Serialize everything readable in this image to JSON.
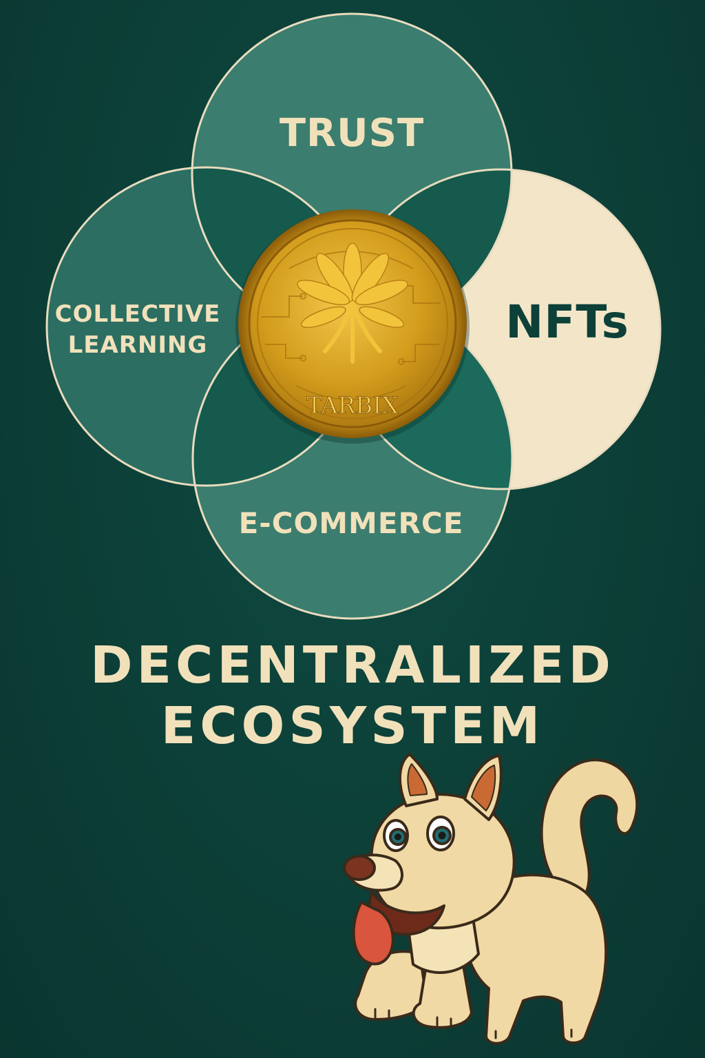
{
  "diagram": {
    "circles": [
      {
        "id": "trust",
        "label": "TRUST"
      },
      {
        "id": "collective-learning",
        "label_lines": [
          "COLLECTIVE",
          "LEARNING"
        ]
      },
      {
        "id": "nfts",
        "label": "NFTs"
      },
      {
        "id": "e-commerce",
        "label": "E-COMMERCE"
      }
    ],
    "coin": {
      "label": "TARBIX",
      "icon": "leaf-emblem-icon"
    }
  },
  "headline": {
    "line1": "DECENTRALIZED",
    "line2": "ECOSYSTEM"
  },
  "mascot": {
    "icon": "dog-mascot-icon"
  },
  "colors": {
    "background": "#0c3f37",
    "circle_teal": "#3b7d6e",
    "circle_outline": "#e9dcbf",
    "nfts_fill": "#f3e6c8",
    "overlap_dark": "#155a4d",
    "text_cream": "#f1e1bb",
    "text_dark": "#0d4038",
    "coin_gold": "#d8a21e"
  }
}
